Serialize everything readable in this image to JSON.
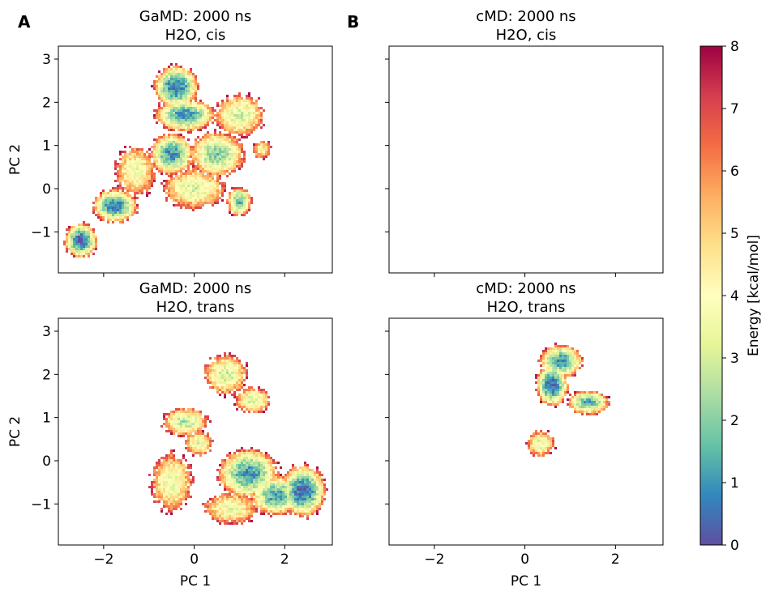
{
  "panel_letters": [
    "A",
    "B"
  ],
  "chart_data": {
    "type": "heatmap",
    "xlabel": "PC 1",
    "ylabel": "PC 2",
    "xlim": [
      -3.0,
      3.05
    ],
    "ylim": [
      -1.95,
      3.3
    ],
    "xticks": [
      -2,
      0,
      2
    ],
    "yticks": [
      -1,
      0,
      1,
      2,
      3
    ],
    "colorbar": {
      "label": "Energy [kcal/mol]",
      "range": [
        0,
        8
      ],
      "ticks": [
        0,
        1,
        2,
        3,
        4,
        5,
        6,
        7,
        8
      ],
      "colormap": "Spectral_r",
      "colors": [
        "#5e4fa2",
        "#3288bd",
        "#66c2a5",
        "#abdda4",
        "#e6f598",
        "#ffffbf",
        "#fee08b",
        "#fdae61",
        "#f46d43",
        "#d53e4f",
        "#9e0142"
      ]
    },
    "panels": [
      {
        "title_line1": "GaMD: 2000 ns",
        "title_line2": "H2O, cis",
        "show_xticklabels": false,
        "show_yticklabels": true,
        "basins": [
          {
            "x": -2.5,
            "y": -1.2,
            "sx": 0.18,
            "sy": 0.2,
            "min_energy": 0.2
          },
          {
            "x": -1.75,
            "y": -0.4,
            "sx": 0.25,
            "sy": 0.2,
            "min_energy": 0.6
          },
          {
            "x": -0.4,
            "y": 2.35,
            "sx": 0.25,
            "sy": 0.25,
            "min_energy": 0.4
          },
          {
            "x": -0.2,
            "y": 1.7,
            "sx": 0.35,
            "sy": 0.2,
            "min_energy": 1.0
          },
          {
            "x": -0.5,
            "y": 0.8,
            "sx": 0.25,
            "sy": 0.25,
            "min_energy": 0.9
          },
          {
            "x": 0.5,
            "y": 0.8,
            "sx": 0.35,
            "sy": 0.3,
            "min_energy": 2.0
          },
          {
            "x": 1.0,
            "y": 1.7,
            "sx": 0.35,
            "sy": 0.3,
            "min_energy": 3.0
          },
          {
            "x": 0.0,
            "y": 0.0,
            "sx": 0.45,
            "sy": 0.3,
            "min_energy": 3.2
          },
          {
            "x": 1.0,
            "y": -0.3,
            "sx": 0.15,
            "sy": 0.18,
            "min_energy": 1.5
          },
          {
            "x": -1.3,
            "y": 0.4,
            "sx": 0.3,
            "sy": 0.4,
            "min_energy": 3.6
          },
          {
            "x": 1.5,
            "y": 0.9,
            "sx": 0.15,
            "sy": 0.15,
            "min_energy": 4.2
          }
        ]
      },
      {
        "title_line1": "cMD: 2000 ns",
        "title_line2": "H2O, cis",
        "show_xticklabels": false,
        "show_yticklabels": false,
        "basins": []
      },
      {
        "title_line1": "GaMD: 2000 ns",
        "title_line2": "H2O, trans",
        "show_xticklabels": true,
        "show_yticklabels": true,
        "basins": [
          {
            "x": -0.5,
            "y": -0.5,
            "sx": 0.3,
            "sy": 0.45,
            "min_energy": 3.4
          },
          {
            "x": 1.2,
            "y": -0.3,
            "sx": 0.35,
            "sy": 0.3,
            "min_energy": 1.0
          },
          {
            "x": 2.4,
            "y": -0.7,
            "sx": 0.25,
            "sy": 0.3,
            "min_energy": 0.3
          },
          {
            "x": 1.8,
            "y": -0.8,
            "sx": 0.3,
            "sy": 0.25,
            "min_energy": 1.2
          },
          {
            "x": 0.7,
            "y": 2.0,
            "sx": 0.3,
            "sy": 0.3,
            "min_energy": 3.0
          },
          {
            "x": 1.3,
            "y": 1.4,
            "sx": 0.25,
            "sy": 0.2,
            "min_energy": 3.2
          },
          {
            "x": -0.2,
            "y": 0.9,
            "sx": 0.3,
            "sy": 0.2,
            "min_energy": 2.6
          },
          {
            "x": 0.8,
            "y": -1.1,
            "sx": 0.4,
            "sy": 0.25,
            "min_energy": 3.6
          },
          {
            "x": 0.1,
            "y": 0.4,
            "sx": 0.2,
            "sy": 0.2,
            "min_energy": 3.4
          }
        ]
      },
      {
        "title_line1": "cMD: 2000 ns",
        "title_line2": "H2O, trans",
        "show_xticklabels": true,
        "show_yticklabels": false,
        "basins": [
          {
            "x": 0.6,
            "y": 1.75,
            "sx": 0.18,
            "sy": 0.25,
            "min_energy": 0.4
          },
          {
            "x": 0.8,
            "y": 2.3,
            "sx": 0.25,
            "sy": 0.2,
            "min_energy": 1.0
          },
          {
            "x": 1.4,
            "y": 1.35,
            "sx": 0.25,
            "sy": 0.15,
            "min_energy": 1.4
          },
          {
            "x": 0.35,
            "y": 0.4,
            "sx": 0.2,
            "sy": 0.2,
            "min_energy": 3.3
          }
        ]
      }
    ]
  }
}
